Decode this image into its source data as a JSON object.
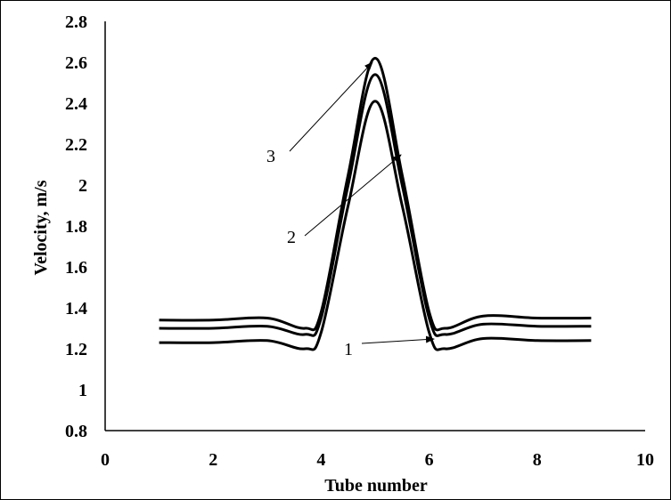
{
  "chart_data": {
    "type": "line",
    "title": "",
    "xlabel": "Tube number",
    "ylabel": "Velocity, m/s",
    "xlim": [
      0,
      10
    ],
    "ylim": [
      0.8,
      2.8
    ],
    "x_ticks": [
      "0",
      "2",
      "4",
      "6",
      "8",
      "10"
    ],
    "y_ticks": [
      "0.8",
      "1",
      "1.2",
      "1.4",
      "1.6",
      "1.8",
      "2",
      "2.2",
      "2.4",
      "2.6",
      "2.8"
    ],
    "grid": false,
    "legend": "none",
    "line_color": "#000000",
    "series": [
      {
        "label": "1",
        "x": [
          1,
          2,
          3,
          3.7,
          4,
          4.5,
          5,
          5.5,
          6,
          6.3,
          7,
          8,
          9
        ],
        "y": [
          1.23,
          1.23,
          1.24,
          1.2,
          1.28,
          1.9,
          2.41,
          1.9,
          1.28,
          1.2,
          1.25,
          1.24,
          1.24
        ]
      },
      {
        "label": "2",
        "x": [
          1,
          2,
          3,
          3.7,
          4,
          4.5,
          5,
          5.5,
          6,
          6.3,
          7,
          8,
          9
        ],
        "y": [
          1.3,
          1.3,
          1.31,
          1.27,
          1.35,
          2.0,
          2.54,
          2.0,
          1.35,
          1.27,
          1.32,
          1.31,
          1.31
        ]
      },
      {
        "label": "3",
        "x": [
          1,
          2,
          3,
          3.7,
          4,
          4.5,
          5,
          5.5,
          6,
          6.3,
          7,
          8,
          9
        ],
        "y": [
          1.34,
          1.34,
          1.35,
          1.3,
          1.38,
          2.05,
          2.62,
          2.05,
          1.38,
          1.3,
          1.36,
          1.35,
          1.35
        ]
      }
    ]
  }
}
